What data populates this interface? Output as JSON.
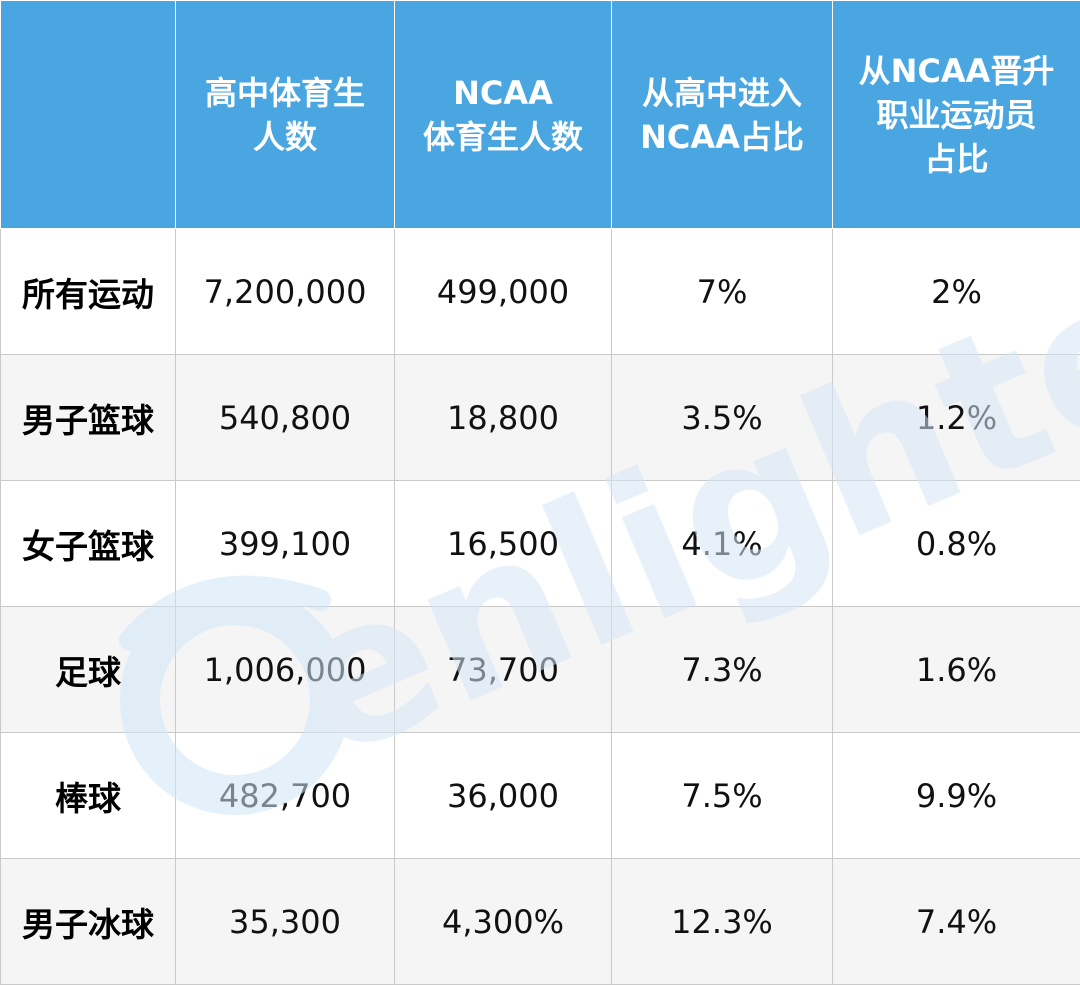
{
  "table": {
    "headers": [
      "",
      [
        "高中体育生",
        "人数"
      ],
      [
        "NCAA",
        "体育生人数"
      ],
      [
        "从高中进入",
        "NCAA占比"
      ],
      [
        "从NCAA晋升",
        "职业运动员",
        "占比"
      ]
    ],
    "rows": [
      {
        "label": "所有运动",
        "hs": "7,200,000",
        "ncaa": "499,000",
        "hs_to_ncaa": "7%",
        "ncaa_to_pro": "2%"
      },
      {
        "label": "男子篮球",
        "hs": "540,800",
        "ncaa": "18,800",
        "hs_to_ncaa": "3.5%",
        "ncaa_to_pro": "1.2%"
      },
      {
        "label": "女子篮球",
        "hs": "399,100",
        "ncaa": "16,500",
        "hs_to_ncaa": "4.1%",
        "ncaa_to_pro": "0.8%"
      },
      {
        "label": "足球",
        "hs": "1,006,000",
        "ncaa": "73,700",
        "hs_to_ncaa": "7.3%",
        "ncaa_to_pro": "1.6%"
      },
      {
        "label": "棒球",
        "hs": "482,700",
        "ncaa": "36,000",
        "hs_to_ncaa": "7.5%",
        "ncaa_to_pro": "9.9%"
      },
      {
        "label": "男子冰球",
        "hs": "35,300",
        "ncaa": "4,300%",
        "hs_to_ncaa": "12.3%",
        "ncaa_to_pro": "7.4%"
      }
    ]
  },
  "watermark": {
    "text": "enlighteens",
    "colors": {
      "light_blue": "#cfe6f6",
      "lavender": "#dcd9ec"
    }
  },
  "colors": {
    "header_bg": "#4aa6e1",
    "header_text": "#ffffff",
    "row_alt_bg": "#f5f5f5",
    "border": "#c9c9c9"
  }
}
